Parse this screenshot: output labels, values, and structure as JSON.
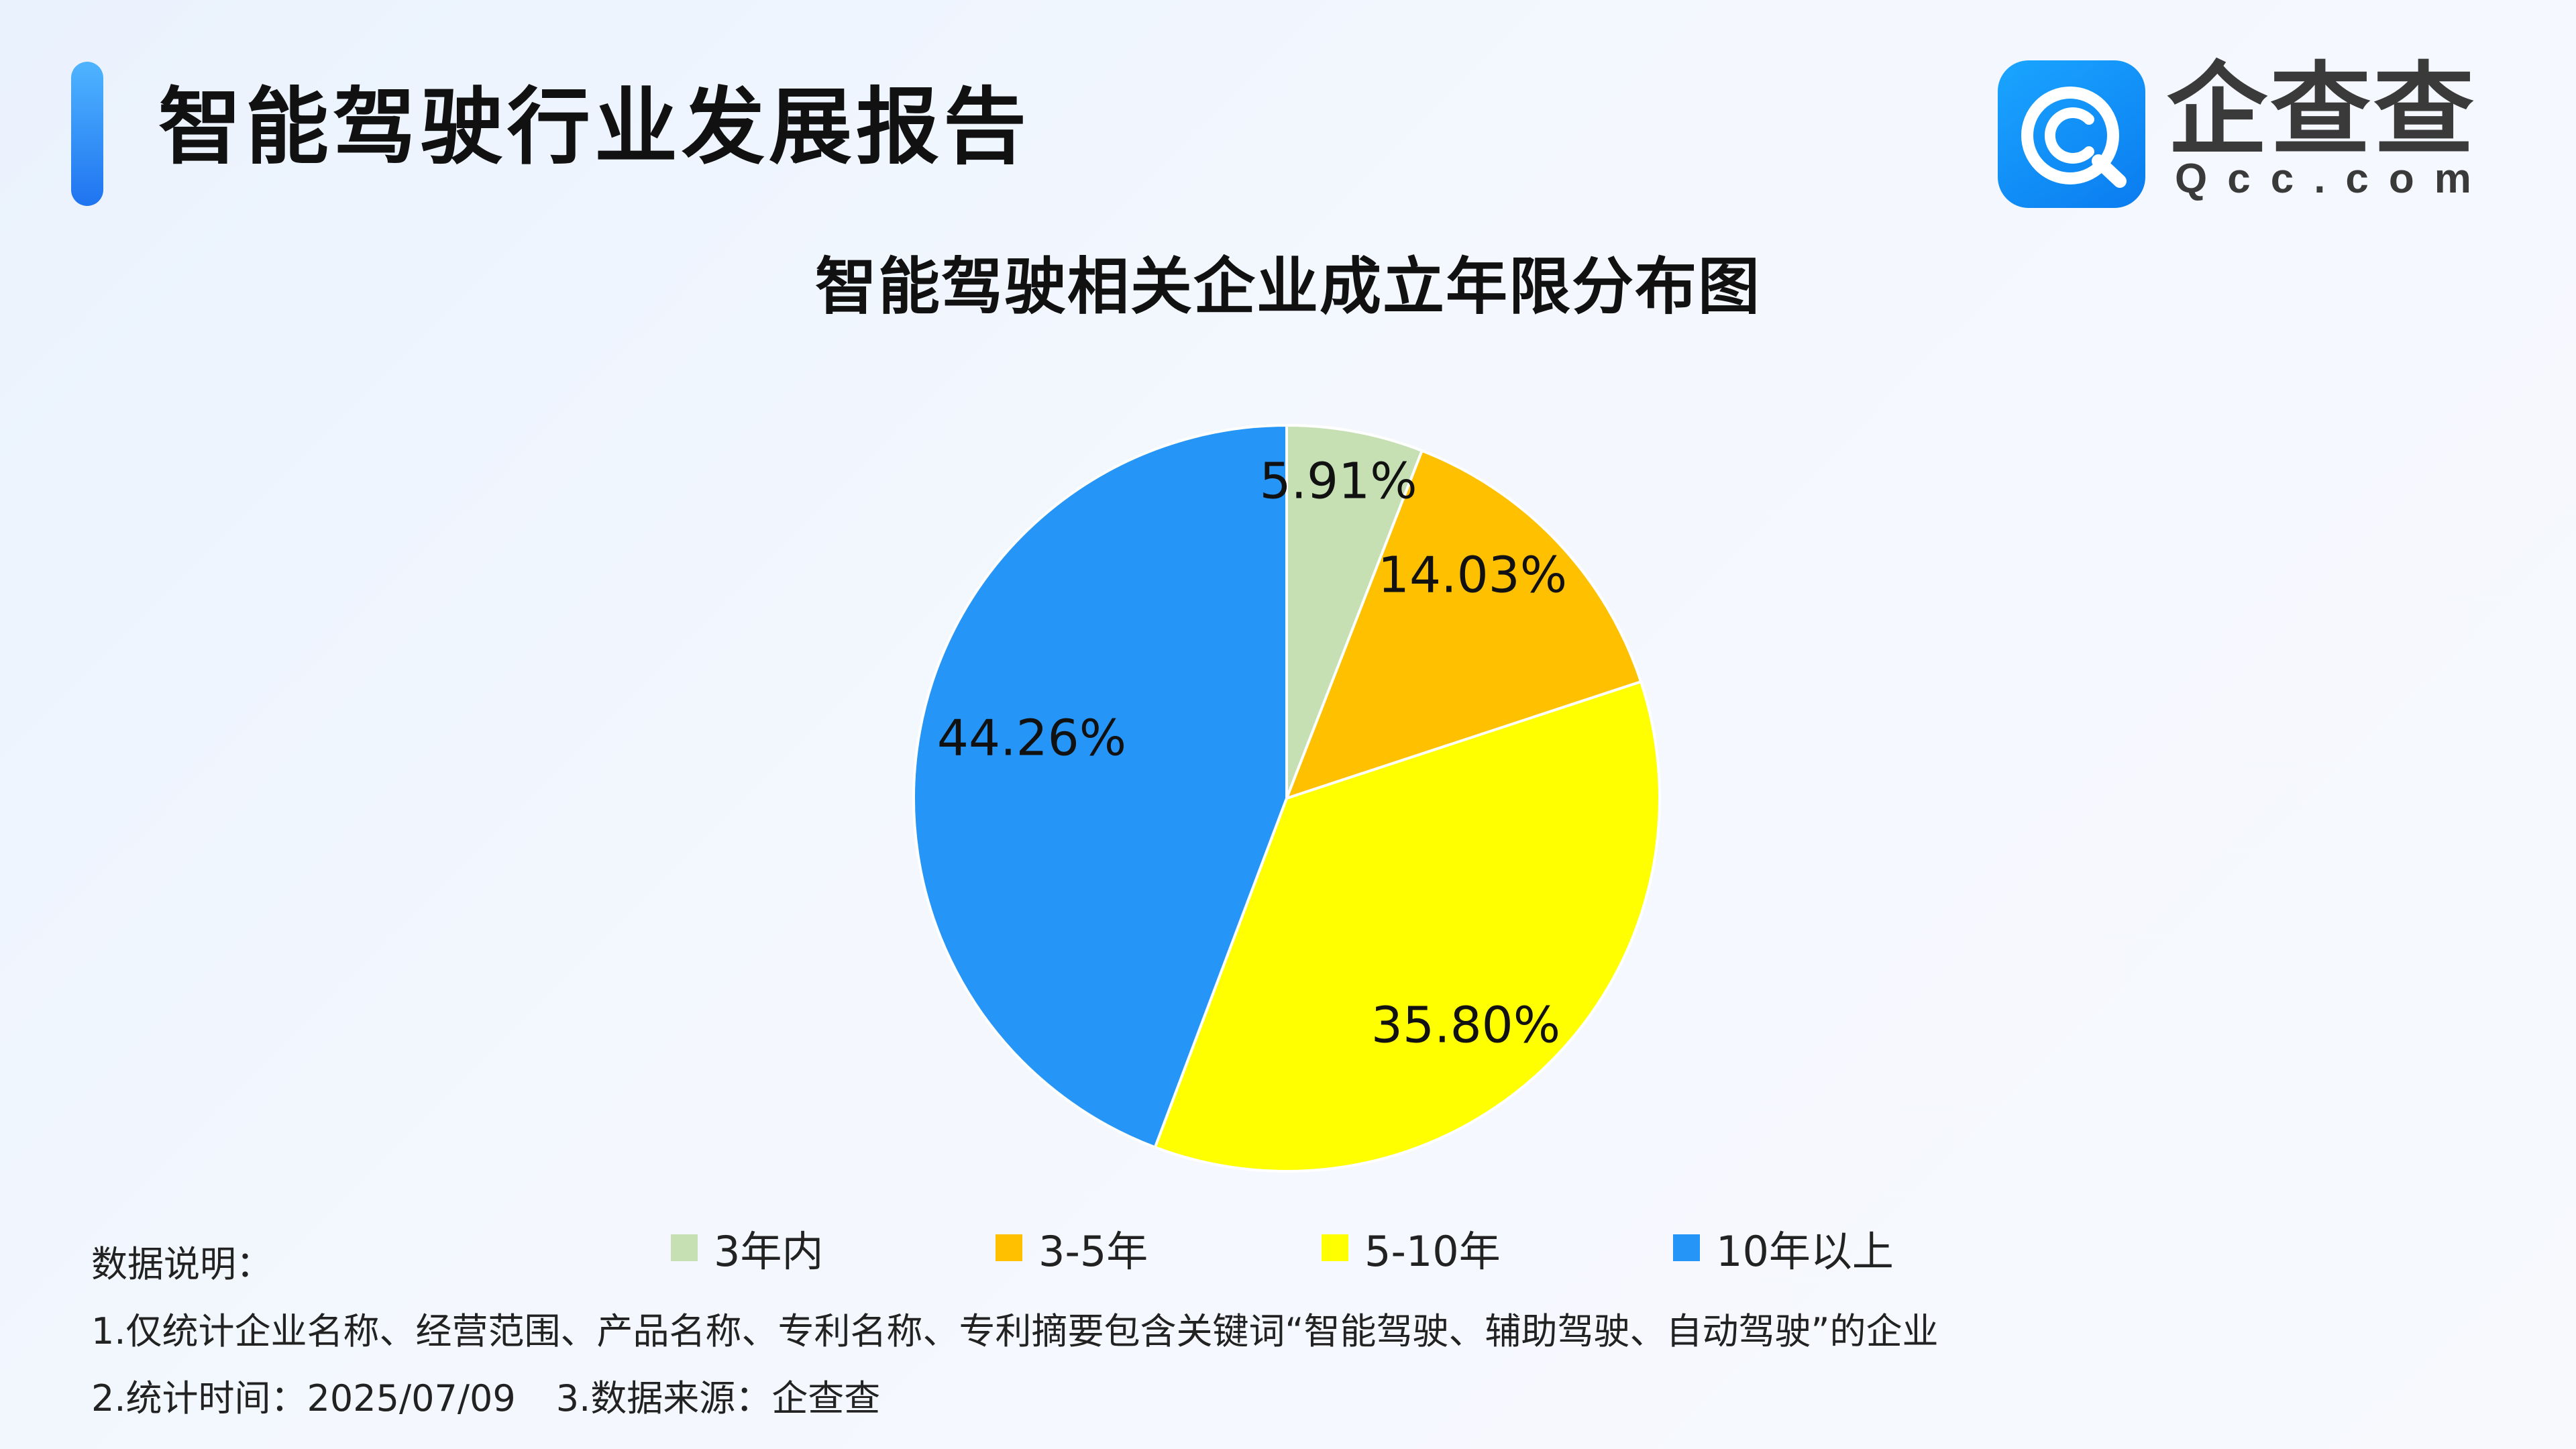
{
  "header": {
    "report_title": "智能驾驶行业发展报告",
    "logo_name": "企查查",
    "logo_url": "Qcc.com",
    "accent_color": "#1f74f0",
    "logo_color": "#0a7cf0"
  },
  "chart_data": {
    "type": "pie",
    "title": "智能驾驶相关企业成立年限分布图",
    "categories": [
      "3年内",
      "3-5年",
      "5-10年",
      "10年以上"
    ],
    "values": [
      5.91,
      14.03,
      35.8,
      44.26
    ],
    "labels": [
      "5.91%",
      "14.03%",
      "35.80%",
      "44.26%"
    ],
    "colors": [
      "#c6e0b4",
      "#ffc000",
      "#ffff00",
      "#2596f7"
    ],
    "start_angle": "12 o'clock",
    "direction": "clockwise",
    "legend_position": "bottom"
  },
  "notes": {
    "heading": "数据说明：",
    "line1": "1.仅统计企业名称、经营范围、产品名称、专利名称、专利摘要包含关键词“智能驾驶、辅助驾驶、自动驾驶”的企业",
    "line2a": "2.统计时间：2025/07/09",
    "line2b": "3.数据来源：企查查"
  }
}
